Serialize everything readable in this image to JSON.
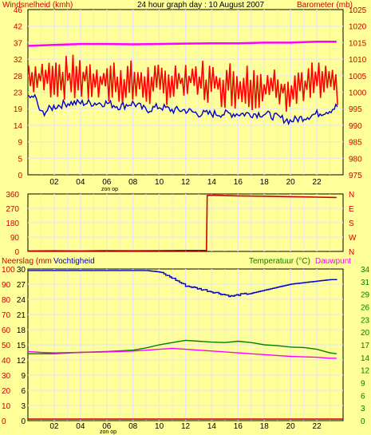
{
  "chart_data": [
    {
      "type": "line",
      "title": "24 hour graph day : 10 August 2007",
      "left_axis_label": "Windsnelheid (kmh)",
      "right_axis_label": "Barometer (mb)",
      "x_ticks": [
        "02",
        "04",
        "06",
        "08",
        "10",
        "12",
        "14",
        "16",
        "18",
        "20",
        "22"
      ],
      "x_annotation": "zon op",
      "x_range": [
        0,
        24
      ],
      "left_ticks": [
        "0",
        "5",
        "9",
        "14",
        "19",
        "23",
        "28",
        "32",
        "37",
        "42",
        "46"
      ],
      "left_range": [
        0,
        46
      ],
      "right_ticks": [
        "975",
        "980",
        "985",
        "990",
        "995",
        "1000",
        "1005",
        "1010",
        "1015",
        "1020",
        "1025"
      ],
      "right_range": [
        975,
        1025
      ],
      "grid": true,
      "series": [
        {
          "axis": "left",
          "color": "#ff0000",
          "style": "gust-band",
          "x": [
            0,
            2,
            4,
            6,
            8,
            10,
            12,
            14,
            16,
            18,
            20,
            22,
            23.5
          ],
          "low": [
            22,
            21,
            20,
            19,
            19,
            19,
            20,
            19,
            18,
            18,
            17,
            19,
            19
          ],
          "high": [
            33,
            33,
            34,
            33,
            32,
            31,
            33,
            32,
            32,
            31,
            31,
            32,
            31
          ]
        },
        {
          "axis": "left",
          "color": "#0000cc",
          "x": [
            0,
            0.5,
            1,
            2,
            3,
            4,
            5,
            6,
            7,
            8,
            9,
            10,
            11,
            12,
            13,
            14,
            15,
            16,
            17,
            18,
            19,
            20,
            21,
            22,
            23,
            23.5
          ],
          "values": [
            21,
            22,
            17,
            19,
            20,
            20,
            20,
            20,
            19,
            20,
            18,
            19,
            18,
            18,
            17,
            17,
            17,
            17,
            17,
            17,
            16,
            15,
            16,
            17,
            18,
            19
          ]
        },
        {
          "axis": "right",
          "color": "#ff00ff",
          "x": [
            0,
            2,
            4,
            6,
            8,
            10,
            12,
            14,
            16,
            18,
            20,
            22,
            23.5
          ],
          "values": [
            1014,
            1014.3,
            1014.6,
            1014.6,
            1014.5,
            1014.6,
            1014.7,
            1014.8,
            1014.8,
            1015,
            1015,
            1015.3,
            1015.3
          ]
        }
      ]
    },
    {
      "type": "line",
      "left_ticks": [
        "0",
        "90",
        "180",
        "270",
        "360"
      ],
      "left_range": [
        0,
        360
      ],
      "right_ticks": [
        "N",
        "W",
        "S",
        "E",
        "N"
      ],
      "x_range": [
        0,
        24
      ],
      "grid": true,
      "series": [
        {
          "axis": "left",
          "color": "#cc0000",
          "x": [
            0,
            2,
            4,
            6,
            8,
            10,
            12,
            13.6,
            13.65,
            14,
            16,
            18,
            20,
            22,
            23.5
          ],
          "values": [
            3,
            4,
            3,
            5,
            4,
            5,
            6,
            6,
            350,
            352,
            348,
            346,
            343,
            340,
            338
          ]
        }
      ]
    },
    {
      "type": "line",
      "left_axis_label": "Neerslag (mm",
      "left_axis_label_2": "Vochtigheid",
      "right_axis_label": "Temperatuur (°C)",
      "right_axis_label_2": "Dauwpunt",
      "x_ticks": [
        "02",
        "04",
        "06",
        "08",
        "10",
        "12",
        "14",
        "16",
        "18",
        "20",
        "22"
      ],
      "x_annotation": "zon op",
      "x_range": [
        0,
        24
      ],
      "left_ticks_outer": [
        "0",
        "10",
        "20",
        "30",
        "40",
        "50",
        "60",
        "70",
        "80",
        "90",
        "100"
      ],
      "left_ticks_inner": [
        "0",
        "3",
        "6",
        "9",
        "12",
        "15",
        "18",
        "21",
        "24",
        "27",
        "30"
      ],
      "left_range_outer": [
        0,
        100
      ],
      "right_ticks": [
        "0",
        "3",
        "6",
        "9",
        "12",
        "14",
        "17",
        "20",
        "23",
        "26",
        "29",
        "31",
        "34"
      ],
      "right_range": [
        0,
        34
      ],
      "grid": true,
      "series": [
        {
          "axis": "left_outer",
          "color": "#0000cc",
          "x": [
            0,
            2,
            4,
            6,
            8,
            9,
            10,
            11,
            12,
            13,
            14,
            15,
            15.5,
            16,
            17,
            18,
            19,
            20,
            21,
            22,
            23,
            23.5
          ],
          "values": [
            99,
            99,
            99,
            99,
            99,
            99,
            98,
            94,
            89,
            87,
            85,
            83,
            82,
            83,
            84,
            86,
            88,
            90,
            91,
            92,
            93,
            93
          ]
        },
        {
          "axis": "right",
          "color": "#008000",
          "x": [
            0,
            1,
            2,
            4,
            6,
            8,
            9,
            10,
            11,
            12,
            13,
            14,
            15,
            16,
            17,
            18,
            19,
            20,
            21,
            22,
            23,
            23.5
          ],
          "values": [
            15,
            15,
            15,
            15.3,
            15.5,
            15.8,
            16.3,
            17,
            17.5,
            18,
            17.8,
            17.6,
            17.5,
            17.8,
            17.5,
            17,
            16.8,
            16.5,
            16.4,
            16,
            15.2,
            15
          ]
        },
        {
          "axis": "right",
          "color": "#ff00ff",
          "x": [
            0,
            1,
            2,
            4,
            6,
            8,
            9,
            10,
            11,
            12,
            13,
            14,
            15,
            16,
            17,
            18,
            19,
            20,
            21,
            22,
            23,
            23.5
          ],
          "values": [
            15.5,
            15.3,
            15.2,
            15.3,
            15.4,
            15.6,
            15.8,
            16,
            16.2,
            16,
            15.8,
            15.6,
            15.4,
            15.2,
            15,
            14.8,
            14.6,
            14.4,
            14.3,
            14.2,
            14,
            14
          ]
        },
        {
          "axis": "left_inner",
          "color": "#cc0000",
          "x": [
            0,
            24
          ],
          "values": [
            0,
            0
          ]
        }
      ]
    }
  ]
}
